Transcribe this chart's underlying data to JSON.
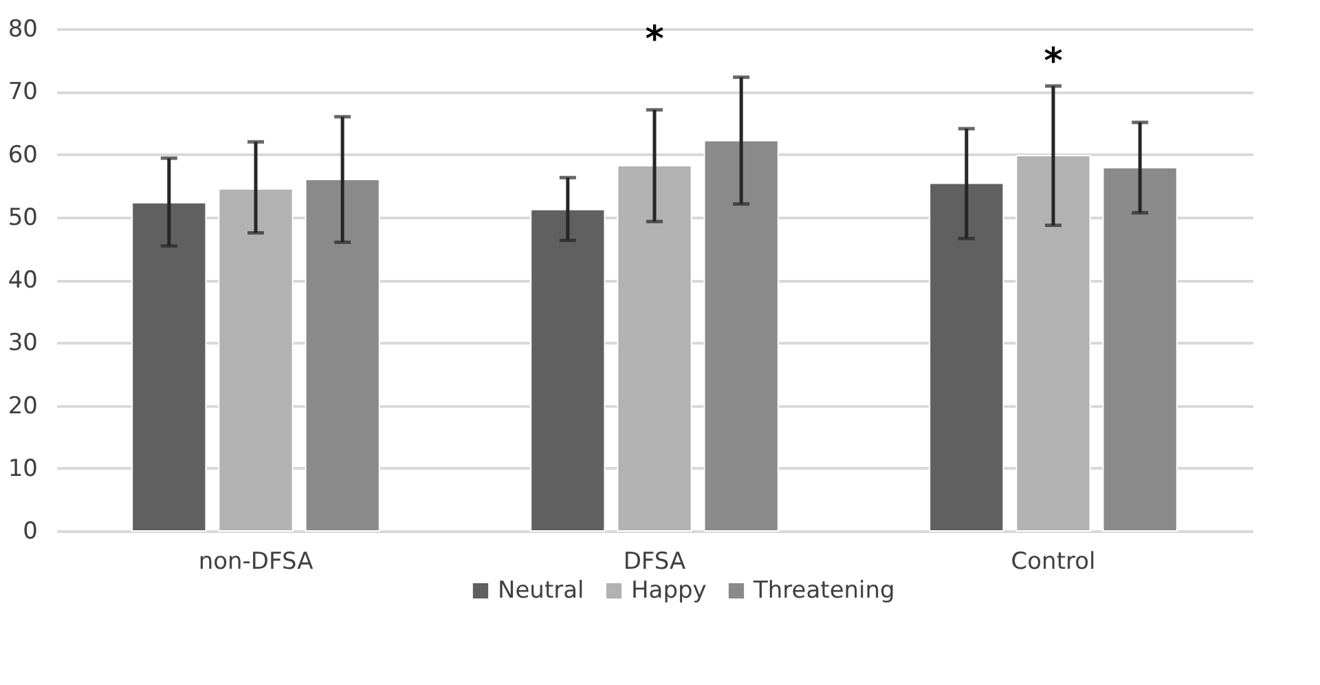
{
  "chart_data": {
    "type": "bar",
    "categories": [
      "non-DFSA",
      "DFSA",
      "Control"
    ],
    "series": [
      {
        "name": "Neutral",
        "color": "#606060",
        "values": [
          52.3,
          51.2,
          55.4
        ],
        "errors": [
          [
            45.4,
            59.4
          ],
          [
            46.3,
            56.3
          ],
          [
            46.6,
            64.1
          ]
        ]
      },
      {
        "name": "Happy",
        "color": "#b2b2b2",
        "values": [
          54.5,
          58.2,
          59.8
        ],
        "errors": [
          [
            47.5,
            62.0
          ],
          [
            49.3,
            67.1
          ],
          [
            48.7,
            70.9
          ]
        ]
      },
      {
        "name": "Threatening",
        "color": "#8a8a8a",
        "values": [
          56.0,
          62.2,
          57.9
        ],
        "errors": [
          [
            46.0,
            66.0
          ],
          [
            52.1,
            72.3
          ],
          [
            50.7,
            65.1
          ]
        ]
      }
    ],
    "annotations": [
      "*",
      "*"
    ],
    "ylim": [
      0,
      80
    ],
    "yticks": [
      0,
      10,
      20,
      30,
      40,
      50,
      60,
      70,
      80
    ],
    "grid": "y",
    "legend": "bottom"
  }
}
